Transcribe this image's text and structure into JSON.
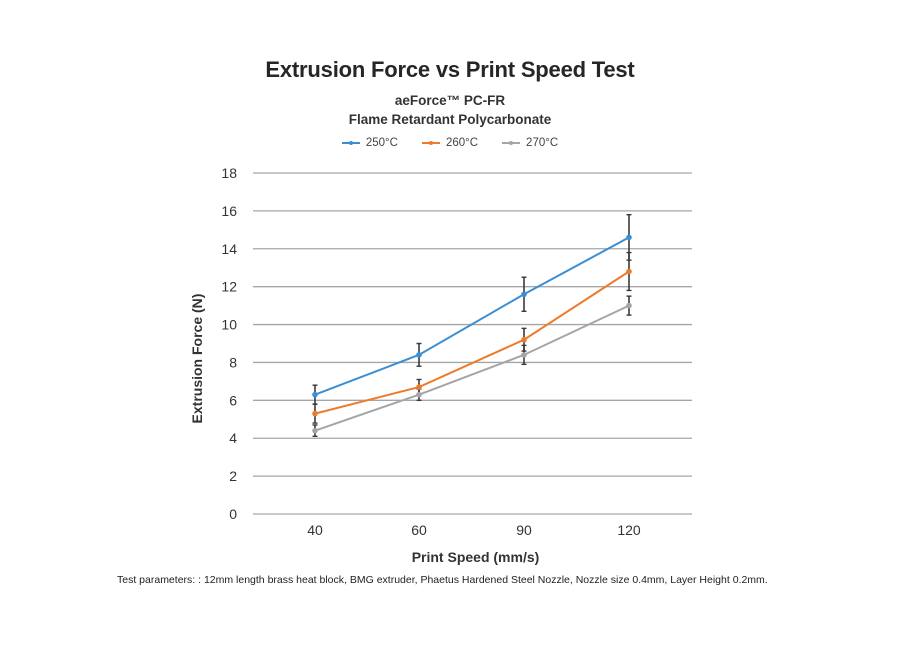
{
  "chart_data": {
    "type": "line",
    "title": "Extrusion Force vs Print Speed Test",
    "subtitle_lines": [
      "aeForce™ PC-FR",
      "Flame Retardant Polycarbonate"
    ],
    "xlabel": "Print Speed (mm/s)",
    "ylabel": "Extrusion Force (N)",
    "categories": [
      "40",
      "60",
      "90",
      "120"
    ],
    "ylim": [
      0,
      18
    ],
    "yticks": [
      0,
      2,
      4,
      6,
      8,
      10,
      12,
      14,
      16,
      18
    ],
    "grid": true,
    "legend_position": "top-center",
    "series": [
      {
        "name": "250°C",
        "color": "#3a8fd4",
        "values": [
          6.3,
          8.4,
          11.6,
          14.6
        ],
        "errors": [
          0.5,
          0.6,
          0.9,
          1.2
        ]
      },
      {
        "name": "260°C",
        "color": "#ee7b2a",
        "values": [
          5.3,
          6.7,
          9.2,
          12.8
        ],
        "errors": [
          0.5,
          0.4,
          0.6,
          1.0
        ]
      },
      {
        "name": "270°C",
        "color": "#a5a5a5",
        "values": [
          4.4,
          6.3,
          8.4,
          11.0
        ],
        "errors": [
          0.3,
          0.3,
          0.5,
          0.5
        ]
      }
    ],
    "error_bar_color": "#3a3a3a"
  },
  "footnote": "Test parameters: : 12mm length brass heat block, BMG extruder, Phaetus Hardened Steel Nozzle, Nozzle size 0.4mm, Layer Height 0.2mm."
}
